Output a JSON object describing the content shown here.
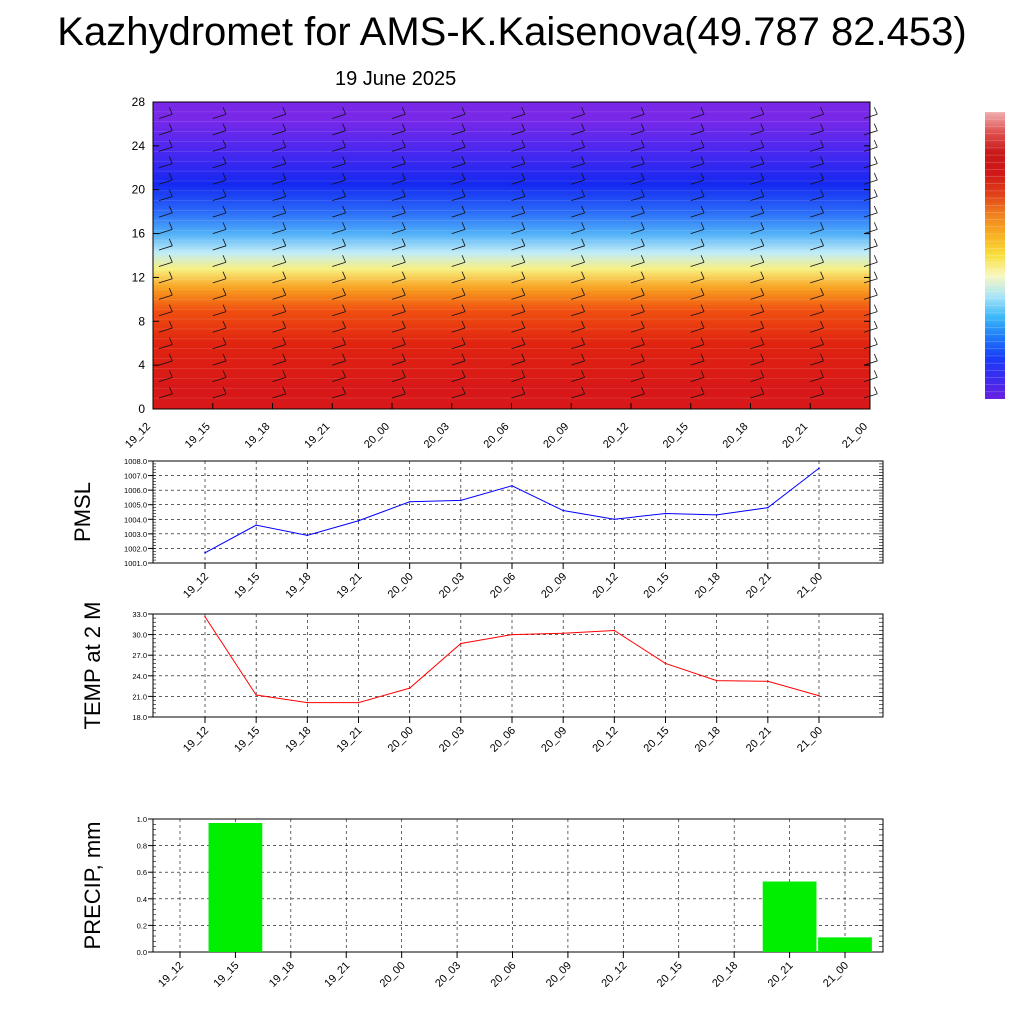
{
  "title": "Kazhydromet for AMS-K.Kaisenova(49.787 82.453)",
  "subtitle": "19 June 2025",
  "colorbar_colors": [
    "#6a20e0",
    "#3a2cf0",
    "#1a3cf8",
    "#1e7af8",
    "#3cb8f8",
    "#a8e4f8",
    "#f8f8c0",
    "#f8e040",
    "#f8b020",
    "#f08020",
    "#e04018",
    "#d01818",
    "#c81818",
    "#e05050",
    "#f0b0b0"
  ],
  "chart_data": [
    {
      "type": "heatmap",
      "categories": [
        "19_12",
        "19_15",
        "19_18",
        "19_21",
        "20_00",
        "20_03",
        "20_06",
        "20_09",
        "20_12",
        "20_15",
        "20_18",
        "20_21",
        "21_00"
      ],
      "ylim": [
        0,
        28
      ],
      "yticks": [
        "0",
        "4",
        "8",
        "12",
        "16",
        "20",
        "24",
        "28"
      ],
      "xlabel": "",
      "ylabel": "",
      "colormap_bands": [
        {
          "from": 0,
          "to": 4,
          "color": "#d81818"
        },
        {
          "from": 4,
          "to": 8,
          "color": "#e02410"
        },
        {
          "from": 8,
          "to": 10,
          "color": "#f05010"
        },
        {
          "from": 10,
          "to": 12,
          "color": "#f8a020"
        },
        {
          "from": 12,
          "to": 13.5,
          "color": "#f8f080"
        },
        {
          "from": 13.5,
          "to": 15,
          "color": "#c0ecf8"
        },
        {
          "from": 15,
          "to": 17,
          "color": "#50b0f8"
        },
        {
          "from": 17,
          "to": 19,
          "color": "#2a6af8"
        },
        {
          "from": 19,
          "to": 22,
          "color": "#1428f0"
        },
        {
          "from": 22,
          "to": 25,
          "color": "#4a28f0"
        },
        {
          "from": 25,
          "to": 28,
          "color": "#7a28e8"
        }
      ]
    },
    {
      "type": "line",
      "ylabel": "PMSL",
      "categories": [
        "19_12",
        "19_15",
        "19_18",
        "19_21",
        "20_00",
        "20_03",
        "20_06",
        "20_09",
        "20_12",
        "20_15",
        "20_18",
        "20_21",
        "21_00"
      ],
      "series": [
        {
          "values": [
            1001.7,
            1003.6,
            1002.9,
            1003.9,
            1005.2,
            1005.3,
            1006.3,
            1004.6,
            1004.0,
            1004.4,
            1004.3,
            1004.8,
            1007.5
          ],
          "color": "#0000ff"
        }
      ],
      "ylim": [
        1001.0,
        1008.0
      ],
      "yticks": [
        "1001.0",
        "1002.0",
        "1003.0",
        "1004.0",
        "1005.0",
        "1006.0",
        "1007.0",
        "1008.0"
      ]
    },
    {
      "type": "line",
      "ylabel": "TEMP at 2 M",
      "categories": [
        "19_12",
        "19_15",
        "19_18",
        "19_21",
        "20_00",
        "20_03",
        "20_06",
        "20_09",
        "20_12",
        "20_15",
        "20_18",
        "20_21",
        "21_00"
      ],
      "series": [
        {
          "values": [
            32.6,
            21.2,
            20.1,
            20.1,
            22.2,
            28.7,
            30.0,
            30.2,
            30.6,
            25.8,
            23.3,
            23.2,
            21.1
          ],
          "color": "#ff0000"
        }
      ],
      "ylim": [
        18.0,
        33.0
      ],
      "yticks": [
        "18.0",
        "21.0",
        "24.0",
        "27.0",
        "30.0",
        "33.0"
      ]
    },
    {
      "type": "bar",
      "ylabel": "PRECIP, mm",
      "categories": [
        "19_12",
        "19_15",
        "19_18",
        "19_21",
        "20_00",
        "20_03",
        "20_06",
        "20_09",
        "20_12",
        "20_15",
        "20_18",
        "20_21",
        "21_00"
      ],
      "values": [
        0,
        0.97,
        0,
        0,
        0,
        0,
        0,
        0,
        0,
        0,
        0,
        0.53,
        0.11
      ],
      "color": "#00ee00",
      "ylim": [
        0.0,
        1.0
      ],
      "yticks": [
        "0.0",
        "0.2",
        "0.4",
        "0.6",
        "0.8",
        "1.0"
      ]
    }
  ]
}
